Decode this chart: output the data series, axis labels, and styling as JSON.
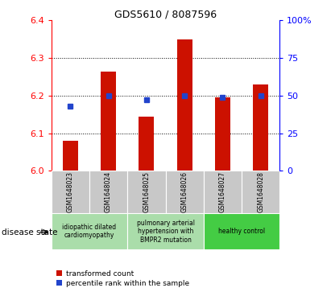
{
  "title": "GDS5610 / 8087596",
  "samples": [
    "GSM1648023",
    "GSM1648024",
    "GSM1648025",
    "GSM1648026",
    "GSM1648027",
    "GSM1648028"
  ],
  "transformed_count": [
    6.08,
    6.265,
    6.145,
    6.35,
    6.195,
    6.23
  ],
  "percentile_rank": [
    43,
    50,
    47,
    50,
    49,
    50
  ],
  "ylim_left": [
    6.0,
    6.4
  ],
  "ylim_right": [
    0,
    100
  ],
  "yticks_left": [
    6.0,
    6.1,
    6.2,
    6.3,
    6.4
  ],
  "yticks_right": [
    0,
    25,
    50,
    75,
    100
  ],
  "ytick_labels_right": [
    "0",
    "25",
    "50",
    "75",
    "100%"
  ],
  "gridlines": [
    6.1,
    6.2,
    6.3
  ],
  "bar_color": "#cc1100",
  "dot_color": "#2244cc",
  "sample_bg": "#c8c8c8",
  "disease_groups": [
    {
      "label": "idiopathic dilated\ncardiomyopathy",
      "start": 0,
      "end": 1,
      "color": "#aaddaa"
    },
    {
      "label": "pulmonary arterial\nhypertension with\nBMPR2 mutation",
      "start": 2,
      "end": 3,
      "color": "#aaddaa"
    },
    {
      "label": "healthy control",
      "start": 4,
      "end": 5,
      "color": "#44cc44"
    }
  ],
  "legend_red_label": "transformed count",
  "legend_blue_label": "percentile rank within the sample",
  "disease_state_label": "disease state",
  "bar_width": 0.4,
  "dot_size": 5
}
